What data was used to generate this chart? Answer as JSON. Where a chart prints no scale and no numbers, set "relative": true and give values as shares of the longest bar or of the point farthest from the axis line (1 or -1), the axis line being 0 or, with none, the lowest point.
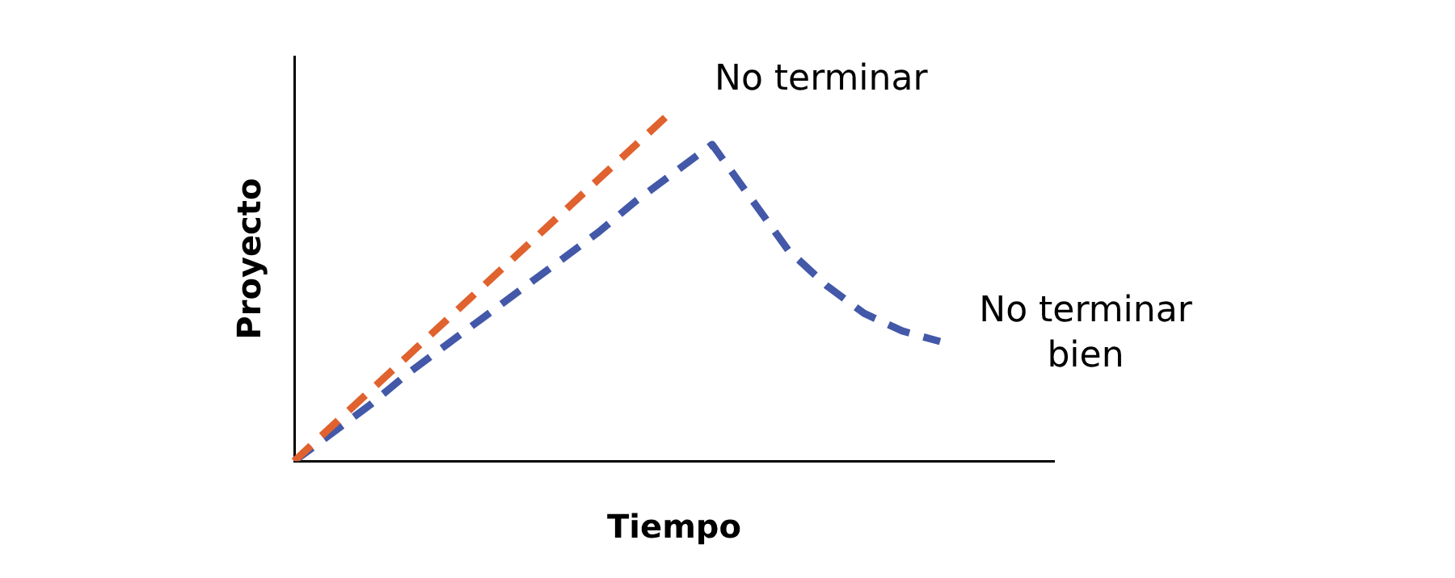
{
  "chart_data": {
    "type": "line",
    "relative": true,
    "xlabel": "Tiempo",
    "ylabel": "Proyecto",
    "line_style": "dashed",
    "marker": "none",
    "grid": false,
    "legend": false,
    "categories": [
      null,
      null,
      null,
      null,
      null,
      null,
      null,
      null,
      null,
      null,
      null,
      null,
      null,
      null,
      null,
      null,
      null,
      null,
      null,
      null,
      null
    ],
    "series": [
      {
        "color": "#e0622e",
        "values": [
          0,
          0.1,
          0.2,
          0.3,
          0.4,
          0.5,
          0.6,
          0.7,
          0.8,
          0.9,
          1,
          null,
          null,
          null,
          null,
          null,
          null,
          null,
          null,
          null,
          null
        ]
      },
      {
        "color": "#4358a8",
        "values": [
          0,
          0.08,
          0.16,
          0.25,
          0.33,
          0.41,
          0.49,
          0.57,
          0.65,
          0.74,
          0.82,
          0.9,
          0.75,
          0.6,
          0.5,
          0.42,
          0.37,
          0.34,
          null,
          null,
          null
        ]
      }
    ],
    "annotations": [
      "No terminar",
      "No terminar\nbien"
    ]
  }
}
